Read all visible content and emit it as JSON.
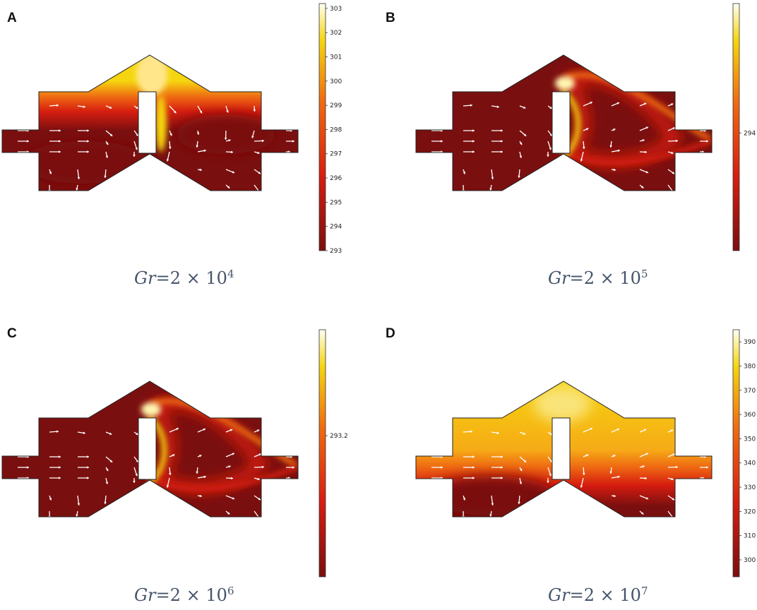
{
  "panels": [
    {
      "id": "A",
      "label": "A",
      "caption": {
        "prefix": "Gr",
        "eq": "=2 × 10",
        "exp": "4"
      },
      "colorbar": {
        "min": 293,
        "max": 303.2,
        "ticks": [
          "293",
          "294",
          "295",
          "296",
          "297",
          "298",
          "299",
          "300",
          "301",
          "302",
          "303"
        ]
      },
      "regime": "diffuse"
    },
    {
      "id": "B",
      "label": "B",
      "caption": {
        "prefix": "Gr",
        "eq": "=2 × 10",
        "exp": "5"
      },
      "colorbar": {
        "min": 293,
        "max": 295.1,
        "ticks": [
          "294"
        ]
      },
      "regime": "plume"
    },
    {
      "id": "C",
      "label": "C",
      "caption": {
        "prefix": "Gr",
        "eq": "=2 × 10",
        "exp": "6"
      },
      "colorbar": {
        "min": 293,
        "max": 293.35,
        "ticks": [
          "293.2"
        ]
      },
      "regime": "plume"
    },
    {
      "id": "D",
      "label": "D",
      "caption": {
        "prefix": "Gr",
        "eq": "=2 × 10",
        "exp": "7"
      },
      "colorbar": {
        "min": 293,
        "max": 395,
        "ticks": [
          "300",
          "310",
          "320",
          "330",
          "340",
          "350",
          "360",
          "370",
          "380",
          "390"
        ]
      },
      "regime": "stratified"
    }
  ],
  "colors": {
    "dark": "#7a0f0f",
    "red": "#d61d10",
    "orange": "#ef6a12",
    "yellow": "#f5d50f",
    "white": "#fffff2",
    "caption": "#44546a"
  }
}
